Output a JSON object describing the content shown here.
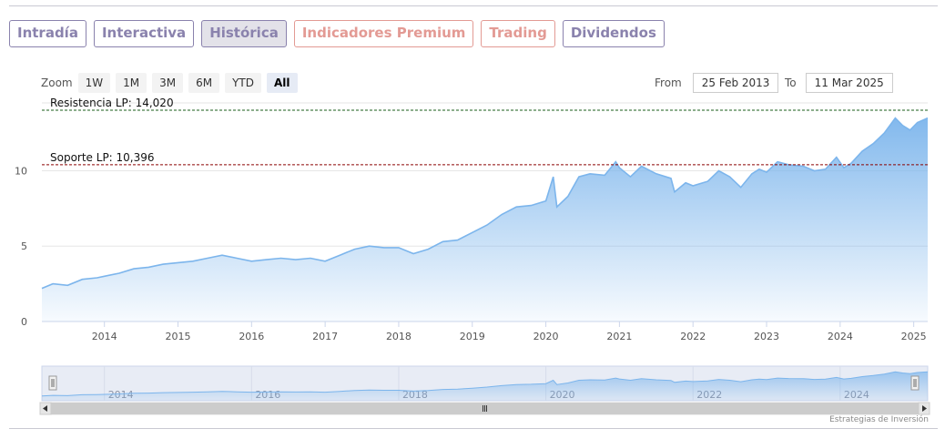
{
  "tabs": [
    {
      "label": "Intradía",
      "style": "normal"
    },
    {
      "label": "Interactiva",
      "style": "normal"
    },
    {
      "label": "Histórica",
      "style": "active"
    },
    {
      "label": "Indicadores Premium",
      "style": "premium"
    },
    {
      "label": "Trading",
      "style": "premium"
    },
    {
      "label": "Dividendos",
      "style": "normal"
    }
  ],
  "zoom": {
    "label": "Zoom",
    "buttons": [
      "1W",
      "1M",
      "3M",
      "6M",
      "YTD",
      "All"
    ],
    "selected": "All"
  },
  "range": {
    "from_label": "From",
    "from_value": "25 Feb 2013",
    "to_label": "To",
    "to_value": "11 Mar 2025"
  },
  "credit": "Estrategias de Inversión",
  "colors": {
    "line": "#7cb5ec",
    "resistance": "#1a5c1a",
    "support": "#8b0000",
    "tab_normal": "#8a82ad",
    "tab_premium": "#e39a94"
  },
  "chart_data": {
    "type": "area",
    "title": "",
    "xlabel": "",
    "ylabel": "",
    "x_start": 2013.15,
    "x_end": 2025.19,
    "xlim": [
      2013.15,
      2025.19
    ],
    "ylim": [
      0,
      14.5
    ],
    "y_ticks": [
      0,
      5,
      10
    ],
    "x_ticks": [
      2014,
      2015,
      2016,
      2017,
      2018,
      2019,
      2020,
      2021,
      2022,
      2023,
      2024,
      2025
    ],
    "navigator_ticks": [
      2014,
      2016,
      2018,
      2020,
      2022,
      2024
    ],
    "grid": true,
    "series": [
      {
        "x": [
          2013.15,
          2013.3,
          2013.5,
          2013.7,
          2013.9,
          2014.0,
          2014.2,
          2014.4,
          2014.6,
          2014.8,
          2015.0,
          2015.2,
          2015.4,
          2015.6,
          2015.8,
          2016.0,
          2016.2,
          2016.4,
          2016.6,
          2016.8,
          2017.0,
          2017.2,
          2017.4,
          2017.6,
          2017.8,
          2018.0,
          2018.2,
          2018.4,
          2018.6,
          2018.8,
          2019.0,
          2019.2,
          2019.4,
          2019.6,
          2019.8,
          2020.0,
          2020.1,
          2020.15,
          2020.3,
          2020.45,
          2020.6,
          2020.8,
          2020.95,
          2021.0,
          2021.15,
          2021.3,
          2021.5,
          2021.7,
          2021.75,
          2021.9,
          2022.0,
          2022.2,
          2022.35,
          2022.5,
          2022.65,
          2022.8,
          2022.9,
          2023.0,
          2023.15,
          2023.3,
          2023.5,
          2023.65,
          2023.8,
          2023.95,
          2024.05,
          2024.15,
          2024.3,
          2024.45,
          2024.6,
          2024.75,
          2024.85,
          2024.95,
          2025.05,
          2025.19
        ],
        "y": [
          2.2,
          2.5,
          2.4,
          2.8,
          2.9,
          3.0,
          3.2,
          3.5,
          3.6,
          3.8,
          3.9,
          4.0,
          4.2,
          4.4,
          4.2,
          4.0,
          4.1,
          4.2,
          4.1,
          4.2,
          4.0,
          4.4,
          4.8,
          5.0,
          4.9,
          4.9,
          4.5,
          4.8,
          5.3,
          5.4,
          5.9,
          6.4,
          7.1,
          7.6,
          7.7,
          8.0,
          9.6,
          7.6,
          8.3,
          9.6,
          9.8,
          9.7,
          10.6,
          10.2,
          9.6,
          10.3,
          9.8,
          9.5,
          8.6,
          9.2,
          9.0,
          9.3,
          10.0,
          9.6,
          8.9,
          9.8,
          10.1,
          9.9,
          10.6,
          10.4,
          10.3,
          10.0,
          10.1,
          10.9,
          10.2,
          10.5,
          11.3,
          11.8,
          12.5,
          13.5,
          13.0,
          12.7,
          13.2,
          13.5
        ]
      }
    ],
    "annotations": [
      {
        "label": "Resistencia LP: 14,020",
        "value": 14.02
      },
      {
        "label": "Soporte LP: 10,396",
        "value": 10.396
      }
    ]
  }
}
